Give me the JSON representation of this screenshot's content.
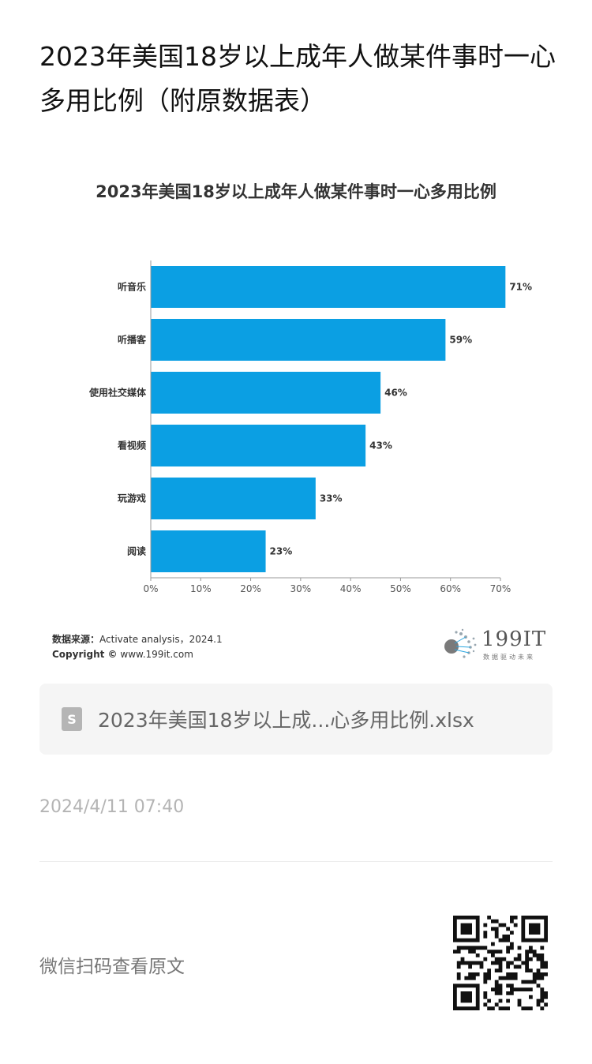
{
  "article": {
    "title": "2023年美国18岁以上成年人做某件事时一心多用比例（附原数据表）"
  },
  "chart_data": {
    "type": "bar",
    "orientation": "horizontal",
    "title": "2023年美国18岁以上成年人做某件事时一心多用比例",
    "categories": [
      "听音乐",
      "听播客",
      "使用社交媒体",
      "看视频",
      "玩游戏",
      "阅读"
    ],
    "values": [
      71,
      59,
      46,
      43,
      33,
      23
    ],
    "value_labels": [
      "71%",
      "59%",
      "46%",
      "43%",
      "33%",
      "23%"
    ],
    "xticks": [
      "0%",
      "10%",
      "20%",
      "30%",
      "40%",
      "50%",
      "60%",
      "70%"
    ],
    "xlim": [
      0,
      70
    ],
    "grid": false,
    "bar_color": "#0b9fe3",
    "xlabel": "",
    "ylabel": ""
  },
  "chart_source": {
    "source_label": "数据来源：",
    "source_text": "Activate analysis，2024.1",
    "copyright_label": "Copyright ©",
    "copyright_text": "www.199it.com"
  },
  "logo": {
    "text": "199IT",
    "subtext": "数据驱动未来"
  },
  "attachment": {
    "file_name": "2023年美国18岁以上成...心多用比例.xlsx",
    "icon_letter": "S"
  },
  "meta": {
    "timestamp": "2024/4/11 07:40"
  },
  "footer": {
    "wechat_text": "微信扫码查看原文"
  }
}
